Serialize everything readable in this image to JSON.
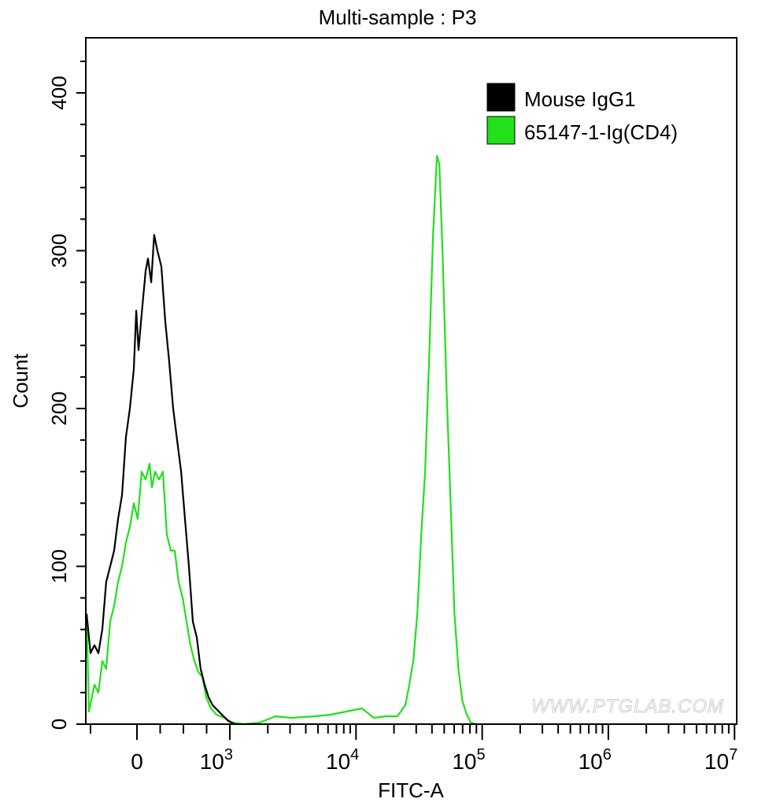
{
  "chart_data": {
    "type": "line",
    "title": "Multi-sample : P3",
    "xlabel": "FITC-A",
    "ylabel": "Count",
    "xscale": "biexponential (linear below 1000, log above)",
    "xlim": [
      -550,
      10000000
    ],
    "ylim": [
      0,
      430
    ],
    "x_ticks": [
      {
        "value": 0,
        "base": "0",
        "exp": ""
      },
      {
        "value": 1000,
        "base": "10",
        "exp": "3"
      },
      {
        "value": 10000,
        "base": "10",
        "exp": "4"
      },
      {
        "value": 100000,
        "base": "10",
        "exp": "5"
      },
      {
        "value": 1000000,
        "base": "10",
        "exp": "6"
      },
      {
        "value": 10000000,
        "base": "10",
        "exp": "7"
      }
    ],
    "y_ticks": [
      {
        "value": 0,
        "label": "0"
      },
      {
        "value": 100,
        "label": "100"
      },
      {
        "value": 200,
        "label": "200"
      },
      {
        "value": 300,
        "label": "300"
      },
      {
        "value": 400,
        "label": "400"
      }
    ],
    "legend": {
      "placement": "top-right"
    },
    "watermark": "WWW.PTGLAB.COM",
    "series": [
      {
        "name": "Mouse IgG1",
        "color": "#000000",
        "x": [
          -542,
          -500,
          -458,
          -415,
          -373,
          -331,
          -288,
          -246,
          -203,
          -161,
          -119,
          -76,
          -34,
          -8,
          17,
          51,
          93,
          119,
          153,
          186,
          220,
          263,
          305,
          347,
          390,
          432,
          475,
          517,
          559,
          602,
          644,
          686,
          729,
          771,
          814,
          898,
          983,
          1100
        ],
        "y": [
          70,
          45,
          50,
          45,
          60,
          90,
          100,
          110,
          130,
          145,
          182,
          200,
          225,
          262,
          237,
          260,
          287,
          295,
          280,
          310,
          300,
          290,
          255,
          230,
          200,
          180,
          160,
          130,
          100,
          65,
          55,
          35,
          25,
          17,
          12,
          7,
          2,
          0
        ]
      },
      {
        "name": "65147-1-Ig(CD4)",
        "color": "#22e01a",
        "x": [
          -542,
          -517,
          -458,
          -415,
          -373,
          -331,
          -288,
          -246,
          -203,
          -161,
          -119,
          -76,
          -34,
          8,
          51,
          93,
          136,
          161,
          195,
          237,
          280,
          322,
          364,
          407,
          449,
          492,
          534,
          576,
          619,
          661,
          703,
          746,
          797,
          856,
          941,
          1044,
          1295,
          1727,
          2300,
          3070,
          4720,
          6270,
          8370,
          11150,
          13860,
          17170,
          21250,
          24600,
          26450,
          28450,
          30600,
          32900,
          35300,
          37900,
          40800,
          43800,
          45800,
          48700,
          52300,
          56200,
          60300,
          64800,
          69600,
          74700,
          81200,
          89600
        ],
        "y": [
          70,
          8,
          25,
          20,
          40,
          35,
          65,
          75,
          90,
          100,
          115,
          125,
          140,
          130,
          160,
          155,
          165,
          150,
          160,
          155,
          160,
          120,
          110,
          110,
          90,
          80,
          65,
          50,
          40,
          33,
          30,
          17,
          10,
          6,
          4,
          1,
          0,
          1,
          5,
          4,
          5,
          6,
          8,
          10,
          4,
          5,
          5,
          12,
          25,
          40,
          70,
          120,
          160,
          230,
          310,
          360,
          355,
          295,
          210,
          140,
          70,
          35,
          15,
          7,
          1,
          0
        ]
      }
    ]
  }
}
